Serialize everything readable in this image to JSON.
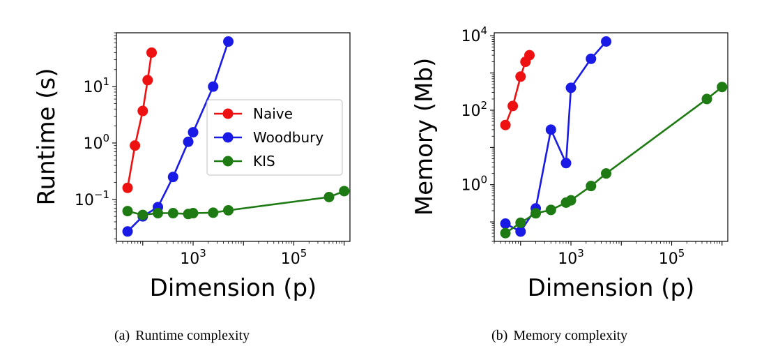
{
  "colors": {
    "naive": "#ee1111",
    "woodbury": "#1a1ae6",
    "kis": "#1e7a12"
  },
  "chart_data": [
    {
      "id": "runtime",
      "type": "line",
      "scale": "log-log",
      "xlabel": "Dimension (p)",
      "ylabel": "Runtime (s)",
      "xlim": [
        30,
        1300000
      ],
      "ylim": [
        0.018,
        90
      ],
      "xticks": [
        {
          "value": 1000,
          "base": "10",
          "exp": "3"
        },
        {
          "value": 100000,
          "base": "10",
          "exp": "5"
        }
      ],
      "yticks": [
        {
          "value": 0.1,
          "base": "10",
          "exp": "−1"
        },
        {
          "value": 1,
          "base": "10",
          "exp": "0"
        },
        {
          "value": 10,
          "base": "10",
          "exp": "1"
        }
      ],
      "legend": {
        "position": "center-right",
        "entries": [
          "Naive",
          "Woodbury",
          "KIS"
        ]
      },
      "series": [
        {
          "name": "Naive",
          "color_key": "naive",
          "x": [
            50,
            70,
            100,
            125,
            150
          ],
          "y": [
            0.16,
            0.9,
            3.7,
            13,
            40
          ]
        },
        {
          "name": "Woodbury",
          "color_key": "woodbury",
          "x": [
            50,
            100,
            200,
            400,
            800,
            1000,
            2500,
            5000
          ],
          "y": [
            0.027,
            0.05,
            0.073,
            0.25,
            1.05,
            1.55,
            10,
            63
          ]
        },
        {
          "name": "KIS",
          "color_key": "kis",
          "x": [
            50,
            100,
            200,
            400,
            800,
            1000,
            2500,
            5000,
            500000,
            1000000
          ],
          "y": [
            0.062,
            0.053,
            0.057,
            0.057,
            0.055,
            0.057,
            0.058,
            0.064,
            0.11,
            0.14
          ]
        }
      ]
    },
    {
      "id": "memory",
      "type": "line",
      "scale": "log-log",
      "xlabel": "Dimension (p)",
      "ylabel": "Memory (Mb)",
      "xlim": [
        30,
        1300000
      ],
      "ylim": [
        0.03,
        12000
      ],
      "xticks": [
        {
          "value": 1000,
          "base": "10",
          "exp": "3"
        },
        {
          "value": 100000,
          "base": "10",
          "exp": "5"
        }
      ],
      "yticks": [
        {
          "value": 1,
          "base": "10",
          "exp": "0"
        },
        {
          "value": 100,
          "base": "10",
          "exp": "2"
        },
        {
          "value": 10000,
          "base": "10",
          "exp": "4"
        }
      ],
      "legend": null,
      "series": [
        {
          "name": "Naive",
          "color_key": "naive",
          "x": [
            50,
            70,
            100,
            125,
            150
          ],
          "y": [
            40,
            130,
            800,
            2000,
            3000
          ]
        },
        {
          "name": "Woodbury",
          "color_key": "woodbury",
          "x": [
            50,
            100,
            200,
            400,
            800,
            1000,
            2500,
            5000
          ],
          "y": [
            0.09,
            0.055,
            0.23,
            30,
            3.8,
            400,
            2400,
            7000
          ]
        },
        {
          "name": "KIS",
          "color_key": "kis",
          "x": [
            50,
            100,
            200,
            400,
            800,
            1000,
            2500,
            5000,
            500000,
            1000000
          ],
          "y": [
            0.05,
            0.095,
            0.17,
            0.21,
            0.33,
            0.38,
            0.92,
            2.0,
            200,
            420
          ]
        }
      ]
    }
  ],
  "captions": [
    {
      "tag": "(a)",
      "text": "Runtime complexity"
    },
    {
      "tag": "(b)",
      "text": "Memory complexity"
    }
  ]
}
